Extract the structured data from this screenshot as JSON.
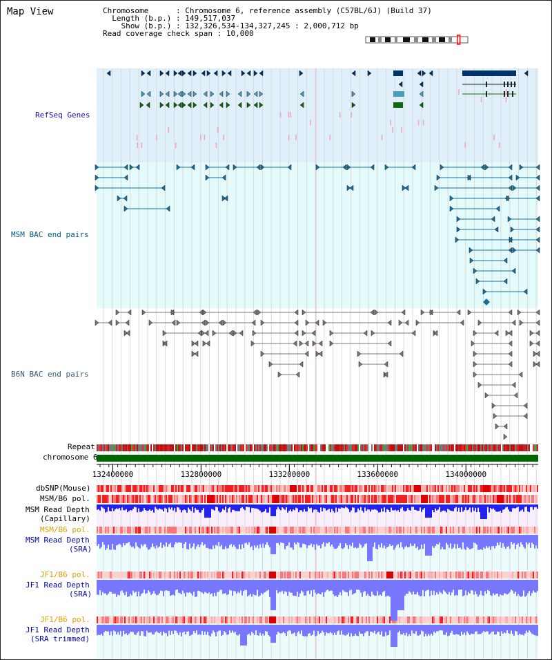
{
  "page": {
    "title": "Map View"
  },
  "info": {
    "chromosome_label": "Chromosome",
    "chromosome_value": "Chromosome 6, reference assembly (C57BL/6J) (Build 37)",
    "length_label": "Length (b.p.)",
    "length_value": "149,517,037",
    "show_label": "Show (b.p.)",
    "show_value": "132,326,534-134,327,245 : 2,000,712 bp",
    "coverage_label": "Read coverage check span",
    "coverage_value": "10,000"
  },
  "view": {
    "start": 132326534,
    "end": 134327245
  },
  "ideogram": {
    "position": 0.91,
    "colors": {
      "dark": "#111111",
      "gray": "#888888",
      "light": "#ffffff",
      "marker": "#ff0000"
    }
  },
  "tracks": {
    "refseq": {
      "label": "RefSeq Genes",
      "color": "#1111aa",
      "bg": "#dff0fb"
    },
    "msm_bac": {
      "label": "MSM BAC end pairs",
      "color": "#005a8c",
      "bg": "#e4fbfb"
    },
    "b6n_bac": {
      "label": "B6N BAC end pairs",
      "color": "#335a78",
      "bg": "#ffffff"
    },
    "repeat": {
      "label": "Repeat"
    },
    "chrom": {
      "label": "chromosome 6",
      "color": "#006600"
    },
    "dbsnp": {
      "label": "dbSNP(Mouse)"
    },
    "msm_b6_pol": {
      "label": "MSM/B6 pol."
    },
    "msm_depth_cap": {
      "label1": "MSM Read Depth",
      "label2": "(Capillary)"
    },
    "msm_b6_pol2": {
      "label": "MSM/B6 pol.",
      "color": "#e89a00"
    },
    "msm_depth_sra": {
      "label1": "MSM Read Depth",
      "label2": "(SRA)",
      "color": "#0000aa"
    },
    "jf1_b6_pol": {
      "label": "JF1/B6 pol.",
      "color": "#e89a00"
    },
    "jf1_depth_sra": {
      "label1": "JF1 Read Depth",
      "label2": "(SRA)",
      "color": "#0000aa"
    },
    "jf1_b6_pol2": {
      "label": "JF1/B6 pol.",
      "color": "#e89a00"
    },
    "jf1_depth_trim": {
      "label1": "JF1 Read Depth",
      "label2": "(SRA trimmed)",
      "color": "#0000aa"
    }
  },
  "axis": {
    "ticks": [
      132400000,
      132800000,
      133200000,
      133600000,
      134000000
    ]
  },
  "colors": {
    "refseq_dark": "#003366",
    "refseq_mid": "#4a9bc0",
    "refseq_green": "#116611",
    "refseq_pink": "#f4a0c0",
    "msm_feature": "#1a6f9a",
    "b6n_feature": "#777777",
    "depth_blue": "#3333ee",
    "depth_light": "#7777ff",
    "snp_red": "#ee2222",
    "grid": "#d8d8d8"
  }
}
